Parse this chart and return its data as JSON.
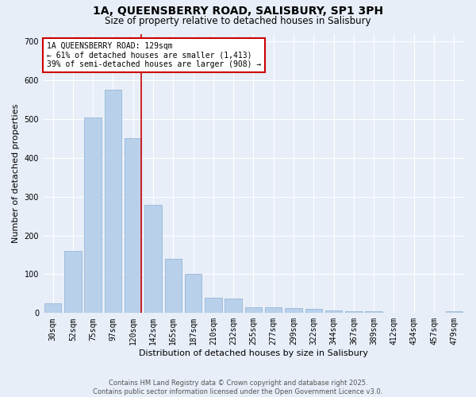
{
  "title": "1A, QUEENSBERRY ROAD, SALISBURY, SP1 3PH",
  "subtitle": "Size of property relative to detached houses in Salisbury",
  "xlabel": "Distribution of detached houses by size in Salisbury",
  "ylabel": "Number of detached properties",
  "categories": [
    "30sqm",
    "52sqm",
    "75sqm",
    "97sqm",
    "120sqm",
    "142sqm",
    "165sqm",
    "187sqm",
    "210sqm",
    "232sqm",
    "255sqm",
    "277sqm",
    "299sqm",
    "322sqm",
    "344sqm",
    "367sqm",
    "389sqm",
    "412sqm",
    "434sqm",
    "457sqm",
    "479sqm"
  ],
  "values": [
    25,
    160,
    505,
    575,
    450,
    280,
    140,
    100,
    40,
    37,
    15,
    15,
    12,
    10,
    6,
    5,
    5,
    0,
    0,
    0,
    4
  ],
  "bar_color": "#b8d0ea",
  "bar_edge_color": "#8aafd4",
  "bar_width": 0.85,
  "background_color": "#e8eef8",
  "grid_color": "#ffffff",
  "vline_color": "#cc0000",
  "annotation_box_text": "1A QUEENSBERRY ROAD: 129sqm\n← 61% of detached houses are smaller (1,413)\n39% of semi-detached houses are larger (908) →",
  "annotation_box_color": "#cc0000",
  "annotation_box_facecolor": "#ffffff",
  "ylim": [
    0,
    720
  ],
  "yticks": [
    0,
    100,
    200,
    300,
    400,
    500,
    600,
    700
  ],
  "footer": "Contains HM Land Registry data © Crown copyright and database right 2025.\nContains public sector information licensed under the Open Government Licence v3.0.",
  "title_fontsize": 10,
  "subtitle_fontsize": 8.5,
  "xlabel_fontsize": 8,
  "ylabel_fontsize": 8,
  "tick_fontsize": 7,
  "annotation_fontsize": 7,
  "footer_fontsize": 6
}
